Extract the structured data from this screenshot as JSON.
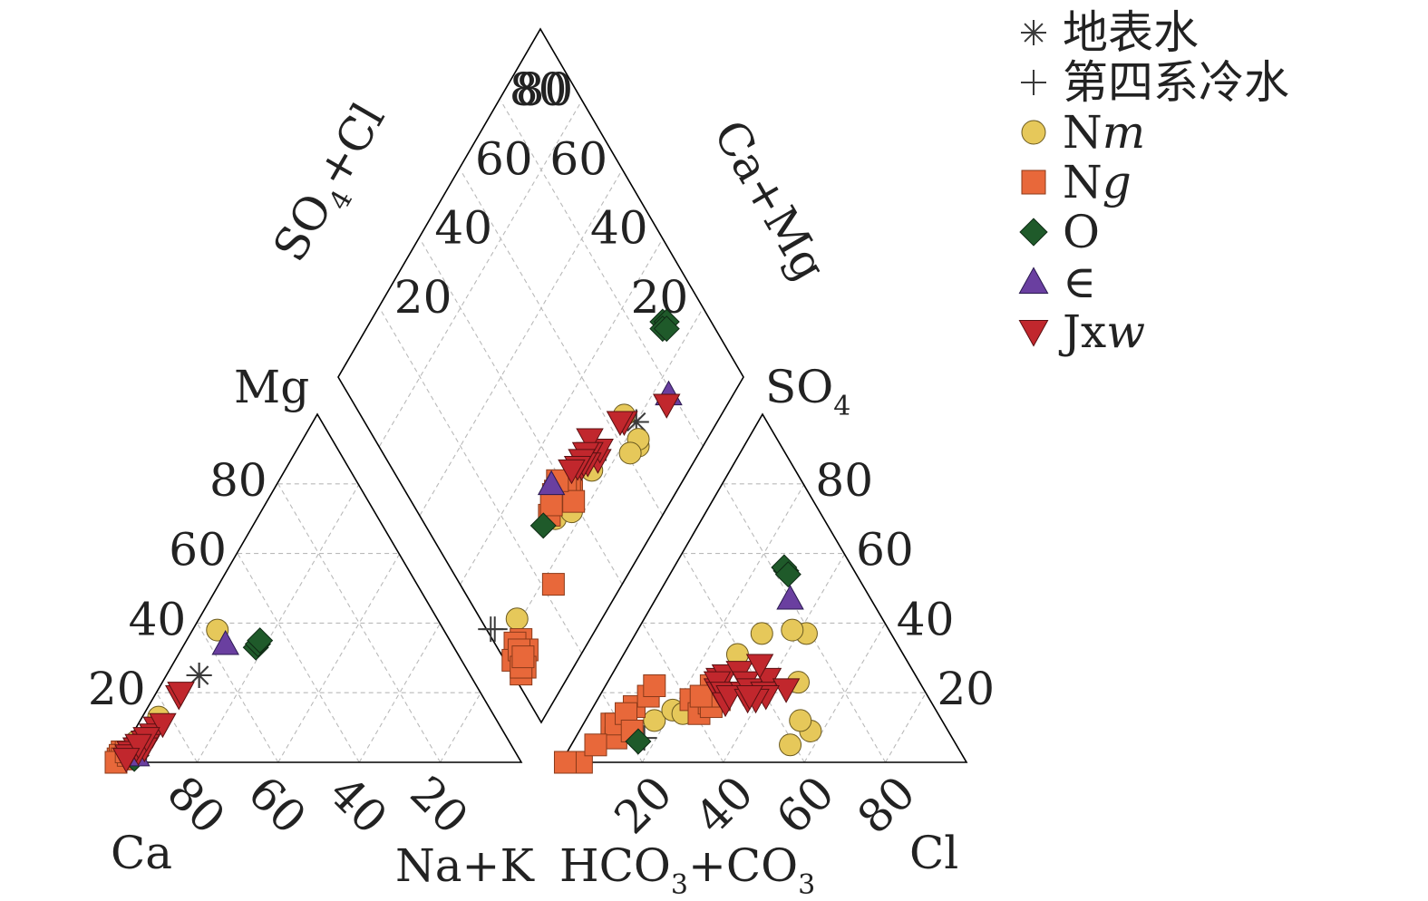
{
  "chart_data": {
    "type": "scatter",
    "diagram": "Piper trilinear diagram",
    "ticks": [
      "20",
      "40",
      "60",
      "80"
    ],
    "labels": {
      "ca": "Ca",
      "mg": "Mg",
      "nak": "Na+K",
      "cl": "Cl",
      "so4": "SO",
      "so4_sub": "4",
      "hco3": "HCO",
      "hco3_sub1": "3",
      "hco3_mid": "+CO",
      "hco3_sub2": "3",
      "so4cl": "SO",
      "so4cl_sub": "4",
      "so4cl_tail": "+Cl",
      "camg": "Ca+Mg"
    },
    "legend": [
      {
        "key": "surface",
        "label": "地表水",
        "italic": "",
        "marker": "asterisk",
        "color": "#3a3a3a"
      },
      {
        "key": "quaternary",
        "label": "第四系冷水",
        "italic": "",
        "marker": "plus",
        "color": "#3a3a3a"
      },
      {
        "key": "nm",
        "label": "N",
        "italic": "m",
        "marker": "circle",
        "color": "#e6c85a"
      },
      {
        "key": "ng",
        "label": "N",
        "italic": "g",
        "marker": "square",
        "color": "#e8683a"
      },
      {
        "key": "o",
        "label": "O",
        "italic": "",
        "marker": "diamond",
        "color": "#1f5a2a"
      },
      {
        "key": "cam",
        "label": "∈",
        "italic": "",
        "marker": "triangle-up",
        "color": "#6a3fa0"
      },
      {
        "key": "jxw",
        "label": "Jx",
        "italic": "w",
        "marker": "triangle-down",
        "color": "#c1272d"
      }
    ],
    "series": [
      {
        "key": "surface",
        "cation": [
          [
            8,
            25
          ],
          [
            8,
            25
          ]
        ],
        "anion": [
          [
            28,
            16
          ],
          [
            28,
            16
          ]
        ],
        "diamond": [
          [
            20,
            67
          ]
        ]
      },
      {
        "key": "quaternary",
        "cation": [],
        "anion": [
          [
            6,
            3
          ],
          [
            6,
            3
          ],
          [
            17,
            7
          ],
          [
            28,
            16
          ],
          [
            28,
            16
          ]
        ],
        "diamond": [
          [
            26,
            1
          ],
          [
            25,
            2
          ],
          [
            25,
            51
          ],
          [
            26,
            51
          ]
        ]
      },
      {
        "key": "nm",
        "cation": [
          [
            6,
            38
          ],
          [
            4,
            13
          ],
          [
            2,
            6
          ]
        ],
        "anion": [
          [
            54,
            5
          ],
          [
            28,
            16
          ],
          [
            27,
            17
          ],
          [
            27,
            24
          ],
          [
            28,
            31
          ],
          [
            57,
            9
          ],
          [
            53,
            12
          ],
          [
            47,
            23
          ],
          [
            42,
            37
          ],
          [
            38,
            38
          ],
          [
            31,
            37
          ],
          [
            17,
            12
          ],
          [
            20,
            15
          ],
          [
            23,
            14
          ]
        ],
        "diamond": [
          [
            16,
            64
          ],
          [
            17,
            65
          ],
          [
            24,
            65
          ],
          [
            26,
            33
          ],
          [
            24,
            49
          ],
          [
            21,
            9
          ],
          [
            17,
            61
          ],
          [
            23,
            38
          ]
        ]
      },
      {
        "key": "ng",
        "cation": [
          [
            0,
            3
          ],
          [
            1,
            2
          ],
          [
            1,
            1
          ],
          [
            0,
            1
          ],
          [
            1,
            2
          ],
          [
            0,
            2
          ],
          [
            2,
            2
          ],
          [
            1,
            1
          ],
          [
            0,
            0
          ],
          [
            2,
            2
          ],
          [
            1,
            3
          ]
        ],
        "anion": [
          [
            7,
            11
          ],
          [
            10,
            7
          ],
          [
            8,
            11
          ],
          [
            10,
            16
          ],
          [
            9,
            14
          ],
          [
            5,
            0
          ],
          [
            13,
            9
          ],
          [
            12,
            19
          ],
          [
            12,
            22
          ],
          [
            1,
            0
          ],
          [
            6,
            5
          ],
          [
            30,
            18
          ],
          [
            27,
            18
          ],
          [
            28,
            18
          ],
          [
            23,
            18
          ],
          [
            27,
            14
          ],
          [
            28,
            17
          ],
          [
            29,
            16
          ],
          [
            28,
            20
          ],
          [
            27,
            21
          ],
          [
            26,
            22
          ],
          [
            28,
            19
          ],
          [
            25,
            19
          ]
        ],
        "diamond": [
          [
            28,
            41
          ],
          [
            26,
            41
          ],
          [
            28,
            39
          ],
          [
            27,
            41
          ],
          [
            28,
            39
          ],
          [
            28,
            40
          ],
          [
            30,
            36
          ],
          [
            30,
            37
          ],
          [
            24,
            40
          ],
          [
            31,
            39
          ],
          [
            28,
            32
          ],
          [
            29,
            34
          ],
          [
            17,
            23
          ],
          [
            17,
            7
          ],
          [
            18,
            5
          ],
          [
            12,
            2
          ],
          [
            14,
            7
          ],
          [
            16,
            2
          ],
          [
            16,
            5
          ],
          [
            12,
            4
          ],
          [
            13,
            3
          ],
          [
            14,
            5
          ]
        ]
      },
      {
        "key": "o",
        "cation": [
          [
            18,
            33
          ],
          [
            18,
            34
          ],
          [
            18,
            35
          ],
          [
            4,
            2
          ],
          [
            4,
            1
          ]
        ],
        "anion": [
          [
            28,
            55
          ],
          [
            27,
            56
          ],
          [
            29,
            54
          ],
          [
            16,
            6
          ]
        ],
        "diamond": [
          [
            28,
            88
          ],
          [
            27,
            89
          ],
          [
            27,
            87
          ],
          [
            26,
            88
          ],
          [
            28,
            29
          ]
        ]
      },
      {
        "key": "cam",
        "cation": [
          [
            10,
            34
          ],
          [
            4,
            2
          ]
        ],
        "anion": [
          [
            33,
            47
          ]
        ],
        "diamond": [
          [
            16,
            79
          ],
          [
            32,
            37
          ]
        ]
      },
      {
        "key": "jxw",
        "cation": [
          [
            6,
            19
          ],
          [
            6,
            20
          ],
          [
            5,
            10
          ],
          [
            5,
            8
          ],
          [
            4,
            6
          ],
          [
            6,
            11
          ],
          [
            5,
            5
          ],
          [
            3,
            4
          ],
          [
            5,
            4
          ],
          [
            4,
            3
          ],
          [
            4,
            7
          ],
          [
            3,
            4
          ],
          [
            2,
            3
          ],
          [
            2,
            2
          ],
          [
            3,
            5
          ],
          [
            2,
            1
          ]
        ],
        "anion": [
          [
            28,
            21
          ],
          [
            29,
            20
          ],
          [
            27,
            24
          ],
          [
            28,
            25
          ],
          [
            27,
            23
          ],
          [
            30,
            20
          ],
          [
            31,
            26
          ],
          [
            34,
            23
          ],
          [
            35,
            20
          ],
          [
            32,
            17
          ],
          [
            32,
            19
          ],
          [
            37,
            18
          ],
          [
            36,
            21
          ],
          [
            39,
            24
          ],
          [
            40,
            20
          ],
          [
            45,
            21
          ],
          [
            41,
            19
          ],
          [
            39,
            18
          ],
          [
            37,
            19
          ],
          [
            35,
            28
          ]
        ],
        "diamond": [
          [
            15,
            77
          ],
          [
            23,
            64
          ],
          [
            24,
            63
          ],
          [
            24,
            52
          ],
          [
            25,
            54
          ],
          [
            27,
            50
          ],
          [
            27,
            51
          ],
          [
            29,
            53
          ],
          [
            28,
            50
          ],
          [
            26,
            49
          ],
          [
            27,
            47
          ],
          [
            27,
            48
          ],
          [
            28,
            48
          ],
          [
            28,
            46
          ],
          [
            29,
            44
          ]
        ]
      }
    ]
  }
}
